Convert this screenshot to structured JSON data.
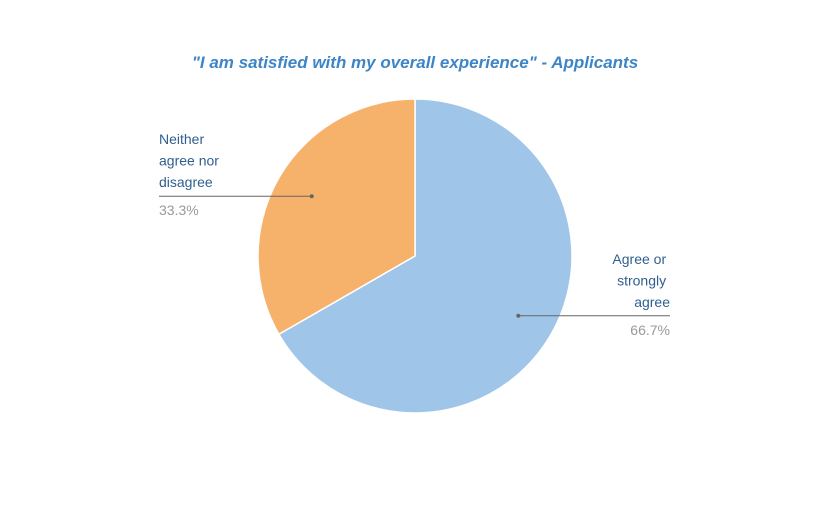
{
  "chart_data": {
    "type": "pie",
    "title": "\"I am satisfied with my overall experience\" - Applicants",
    "categories": [
      "Agree or strongly agree",
      "Neither agree nor disagree"
    ],
    "values": [
      66.7,
      33.3
    ],
    "value_labels": [
      "66.7%",
      "33.3%"
    ],
    "colors": [
      "#9fc5e8",
      "#f6b26b"
    ]
  }
}
